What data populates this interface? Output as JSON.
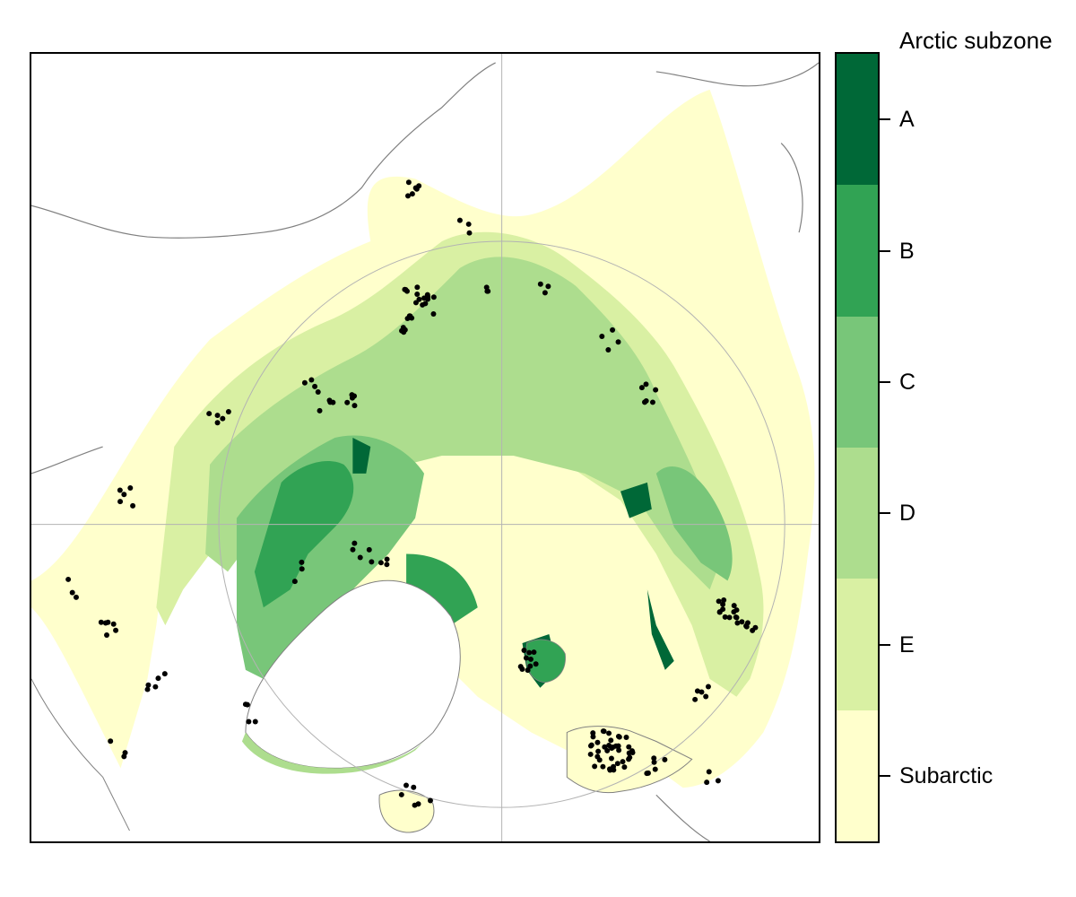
{
  "legend": {
    "title": "Arctic subzone",
    "classes": [
      {
        "label": "A",
        "color": "#006837"
      },
      {
        "label": "B",
        "color": "#31a354"
      },
      {
        "label": "C",
        "color": "#78c679"
      },
      {
        "label": "D",
        "color": "#addd8e"
      },
      {
        "label": "E",
        "color": "#d9f0a3"
      },
      {
        "label": "Subarctic",
        "color": "#ffffcc"
      }
    ]
  },
  "colors": {
    "land_fill": "#ffffff",
    "coastline": "#808080",
    "graticule": "#b3b3b3",
    "sample_point": "#000000"
  }
}
